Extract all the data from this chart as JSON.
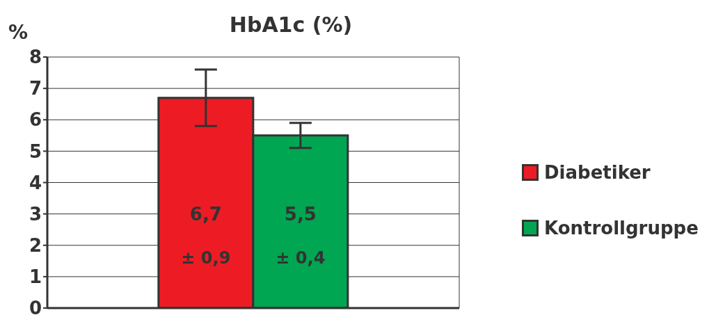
{
  "chart_data": {
    "type": "bar",
    "title": "HbA1c (%)",
    "ylabel": "%",
    "categories": [
      null
    ],
    "series": [
      {
        "name": "Diabetiker",
        "color": "#ed1c24",
        "values": [
          6.7
        ],
        "errors": [
          0.9
        ],
        "value_labels": [
          "6,7"
        ]
      },
      {
        "name": "Kontrollgruppe",
        "color": "#00a651",
        "values": [
          5.5
        ],
        "errors": [
          0.4
        ],
        "value_labels": [
          "5,5"
        ]
      }
    ],
    "annotations": [
      "± 0,9",
      "± 0,4"
    ],
    "ylim": [
      0,
      8
    ],
    "yticks": [
      0,
      1,
      2,
      3,
      4,
      5,
      6,
      7,
      8
    ],
    "grid": "y",
    "legend": "right",
    "tick_labels": "y"
  }
}
